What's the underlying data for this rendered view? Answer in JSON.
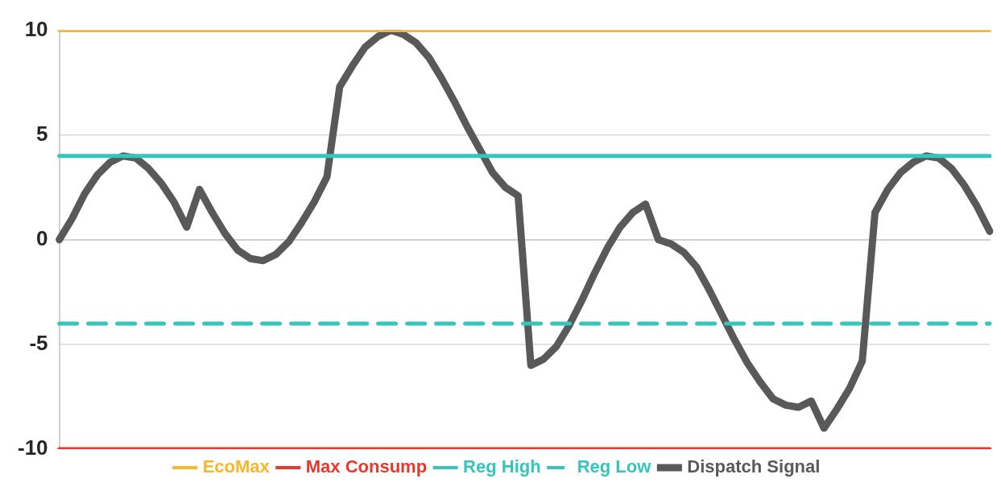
{
  "chart_data": {
    "type": "line",
    "categories": [
      null,
      null,
      null,
      null,
      null,
      null,
      null,
      null,
      null,
      null,
      null,
      null,
      null,
      null,
      null,
      null,
      null,
      null,
      null,
      null,
      null,
      null,
      null,
      null,
      null,
      null,
      null,
      null,
      null,
      null,
      null,
      null,
      null,
      null,
      null,
      null,
      null,
      null,
      null,
      null,
      null,
      null,
      null,
      null,
      null,
      null,
      null,
      null,
      null,
      null,
      null,
      null,
      null,
      null,
      null,
      null,
      null,
      null,
      null,
      null,
      null,
      null,
      null,
      null,
      null,
      null,
      null,
      null,
      null,
      null,
      null,
      null,
      null,
      null
    ],
    "series": [
      {
        "name": "EcoMax",
        "color": "#f9b62a",
        "values": [
          10,
          10,
          10,
          10,
          10,
          10,
          10,
          10,
          10,
          10,
          10,
          10,
          10,
          10,
          10,
          10,
          10,
          10,
          10,
          10,
          10,
          10,
          10,
          10,
          10,
          10,
          10,
          10,
          10,
          10,
          10,
          10,
          10,
          10,
          10,
          10,
          10,
          10,
          10,
          10,
          10,
          10,
          10,
          10,
          10,
          10,
          10,
          10,
          10,
          10,
          10,
          10,
          10,
          10,
          10,
          10,
          10,
          10,
          10,
          10,
          10,
          10,
          10,
          10,
          10,
          10,
          10,
          10,
          10,
          10,
          10,
          10,
          10,
          10
        ]
      },
      {
        "name": "Max Consump",
        "color": "#e8382d",
        "values": [
          -10,
          -10,
          -10,
          -10,
          -10,
          -10,
          -10,
          -10,
          -10,
          -10,
          -10,
          -10,
          -10,
          -10,
          -10,
          -10,
          -10,
          -10,
          -10,
          -10,
          -10,
          -10,
          -10,
          -10,
          -10,
          -10,
          -10,
          -10,
          -10,
          -10,
          -10,
          -10,
          -10,
          -10,
          -10,
          -10,
          -10,
          -10,
          -10,
          -10,
          -10,
          -10,
          -10,
          -10,
          -10,
          -10,
          -10,
          -10,
          -10,
          -10,
          -10,
          -10,
          -10,
          -10,
          -10,
          -10,
          -10,
          -10,
          -10,
          -10,
          -10,
          -10,
          -10,
          -10,
          -10,
          -10,
          -10,
          -10,
          -10,
          -10,
          -10,
          -10,
          -10,
          -10
        ]
      },
      {
        "name": "Reg High",
        "color": "#33c6bd",
        "values": [
          4,
          4,
          4,
          4,
          4,
          4,
          4,
          4,
          4,
          4,
          4,
          4,
          4,
          4,
          4,
          4,
          4,
          4,
          4,
          4,
          4,
          4,
          4,
          4,
          4,
          4,
          4,
          4,
          4,
          4,
          4,
          4,
          4,
          4,
          4,
          4,
          4,
          4,
          4,
          4,
          4,
          4,
          4,
          4,
          4,
          4,
          4,
          4,
          4,
          4,
          4,
          4,
          4,
          4,
          4,
          4,
          4,
          4,
          4,
          4,
          4,
          4,
          4,
          4,
          4,
          4,
          4,
          4,
          4,
          4,
          4,
          4,
          4,
          4
        ]
      },
      {
        "name": "Reg Low",
        "color": "#33c6bd",
        "line_style": "dashed",
        "values": [
          -4,
          -4,
          -4,
          -4,
          -4,
          -4,
          -4,
          -4,
          -4,
          -4,
          -4,
          -4,
          -4,
          -4,
          -4,
          -4,
          -4,
          -4,
          -4,
          -4,
          -4,
          -4,
          -4,
          -4,
          -4,
          -4,
          -4,
          -4,
          -4,
          -4,
          -4,
          -4,
          -4,
          -4,
          -4,
          -4,
          -4,
          -4,
          -4,
          -4,
          -4,
          -4,
          -4,
          -4,
          -4,
          -4,
          -4,
          -4,
          -4,
          -4,
          -4,
          -4,
          -4,
          -4,
          -4,
          -4,
          -4,
          -4,
          -4,
          -4,
          -4,
          -4,
          -4,
          -4,
          -4,
          -4,
          -4,
          -4,
          -4,
          -4,
          -4,
          -4,
          -4,
          -4
        ]
      },
      {
        "name": "Dispatch Signal",
        "color": "#595959",
        "values": [
          0,
          1.0,
          2.2,
          3.1,
          3.7,
          4.0,
          3.9,
          3.4,
          2.7,
          1.8,
          0.6,
          2.4,
          1.3,
          0.3,
          -0.5,
          -0.9,
          -1.0,
          -0.7,
          -0.1,
          0.8,
          1.8,
          3.0,
          7.3,
          8.3,
          9.2,
          9.7,
          10,
          9.8,
          9.4,
          8.7,
          7.7,
          6.6,
          5.4,
          4.3,
          3.2,
          2.5,
          2.1,
          -6.0,
          -5.7,
          -5.1,
          -4.1,
          -2.9,
          -1.6,
          -0.4,
          0.6,
          1.3,
          1.7,
          0.0,
          -0.2,
          -0.6,
          -1.3,
          -2.4,
          -3.6,
          -4.8,
          -5.9,
          -6.8,
          -7.6,
          -7.9,
          -8.0,
          -7.7,
          -9.0,
          -8.1,
          -7.1,
          -5.8,
          1.3,
          2.4,
          3.2,
          3.7,
          4.0,
          3.9,
          3.4,
          2.6,
          1.6,
          0.4
        ]
      }
    ],
    "ylim": [
      -10,
      10
    ],
    "yticks": [
      -10,
      -5,
      0,
      5,
      10
    ],
    "grid": "y",
    "legend": "bottom",
    "marker": "none",
    "line_style": "solid",
    "tick_labels": "y"
  }
}
